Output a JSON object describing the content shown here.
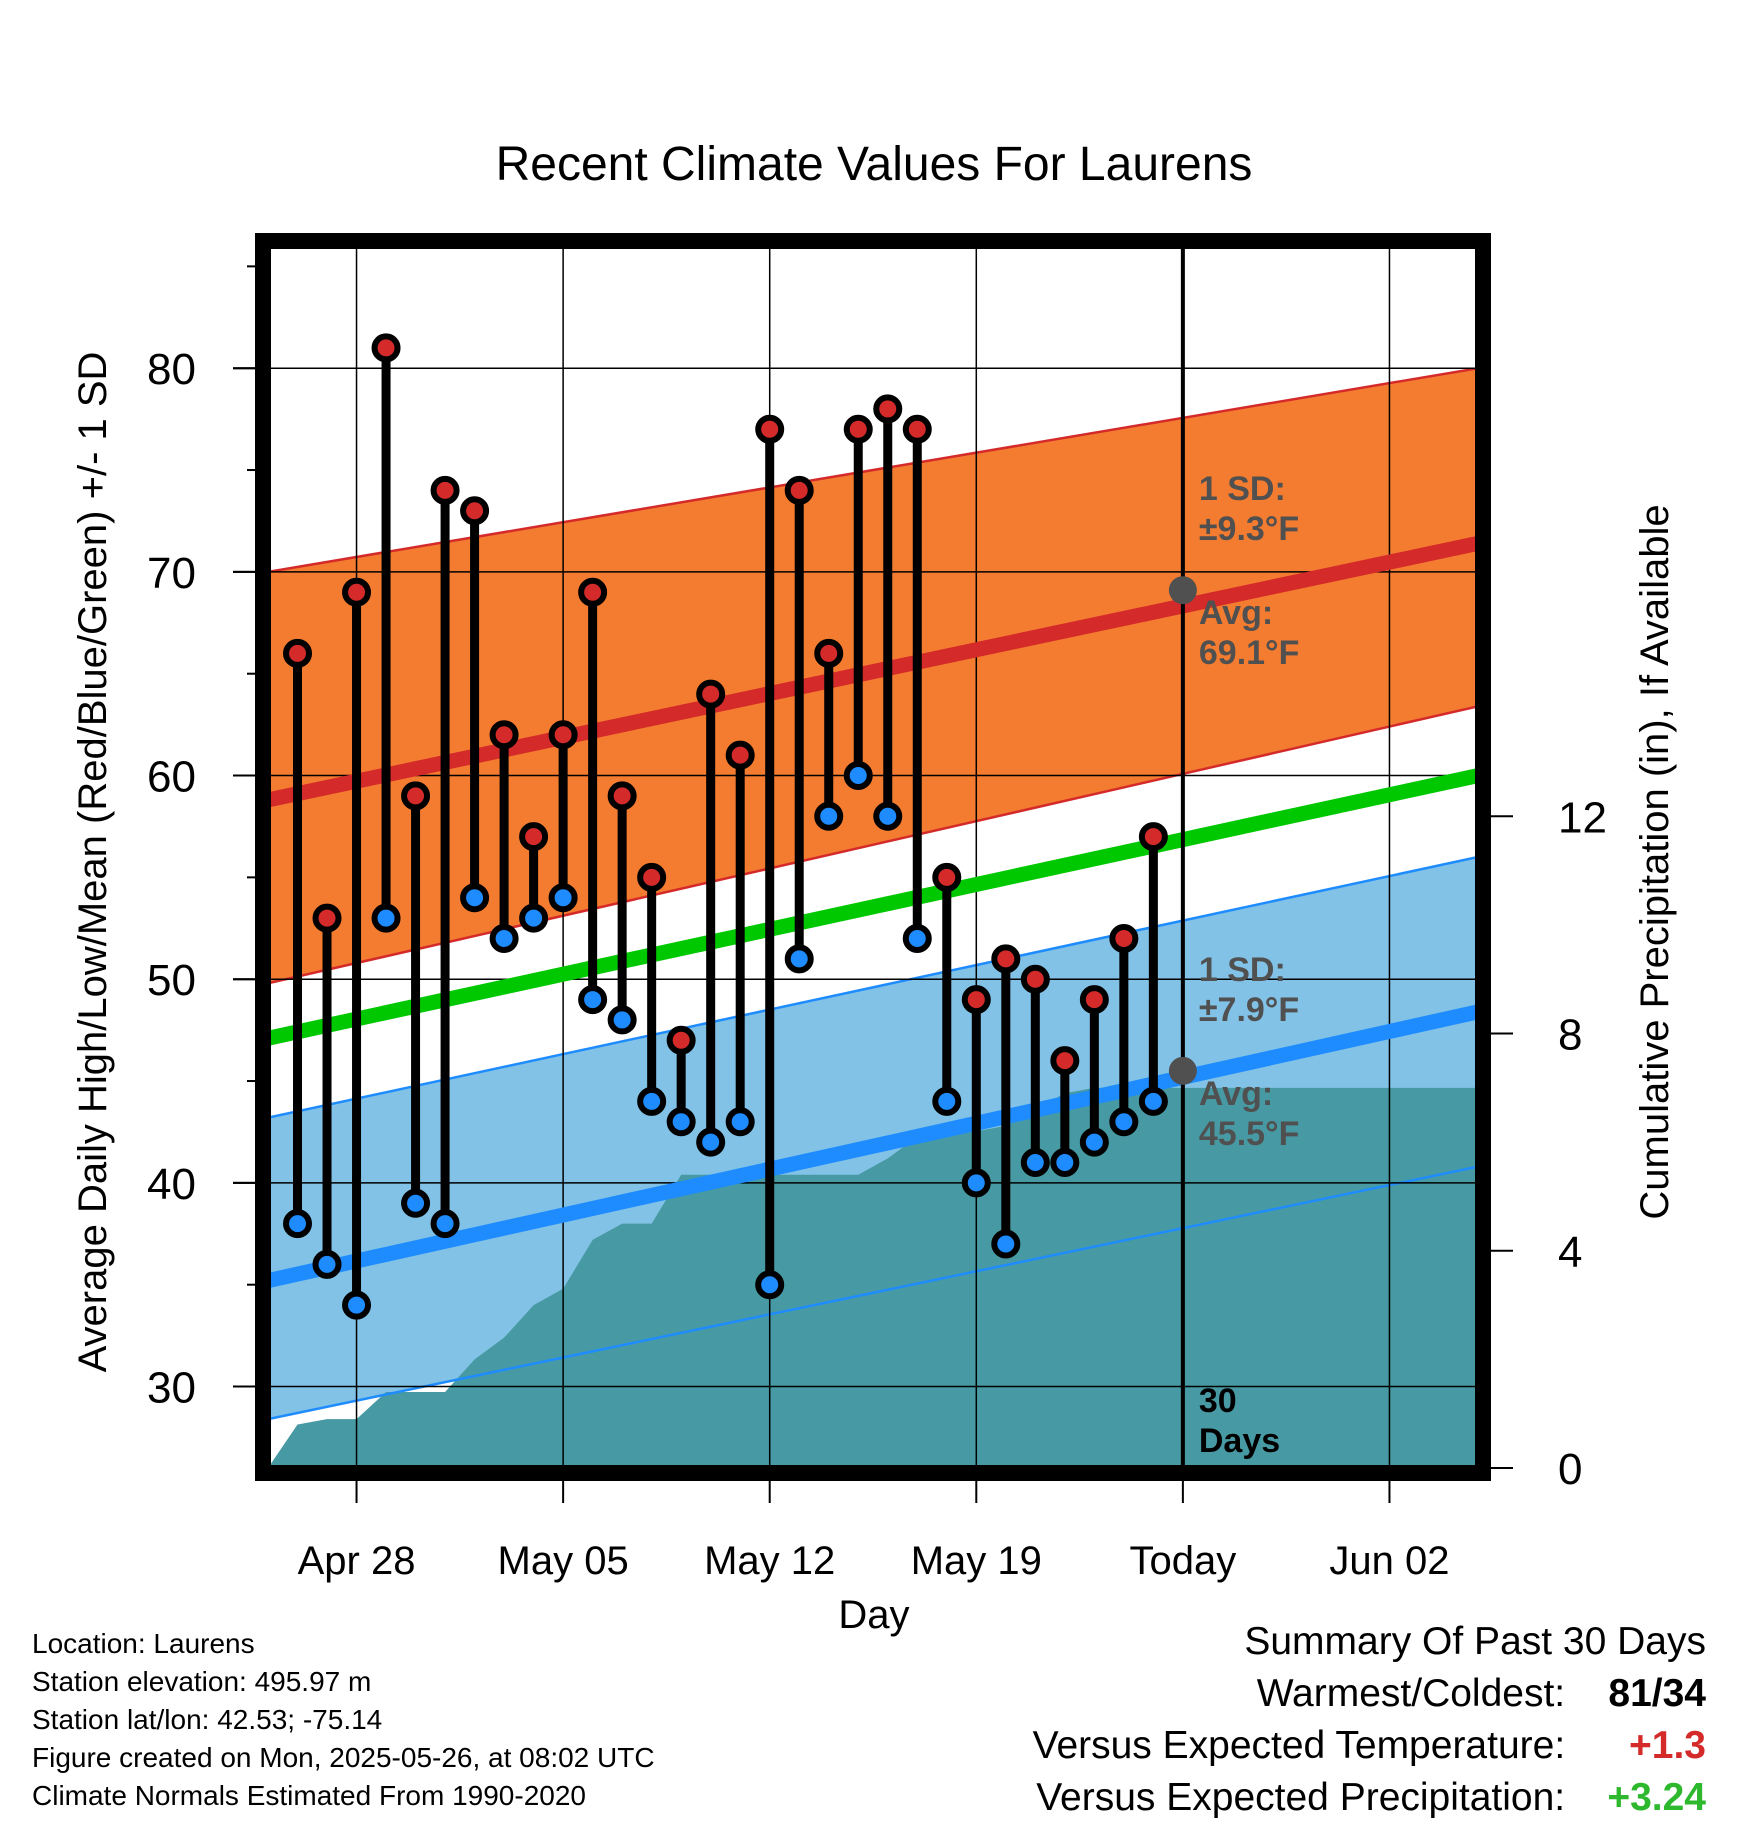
{
  "chart_data": {
    "type": "line",
    "title": "Recent Climate Values For Laurens",
    "xlabel": "Day",
    "ylabel": "Average Daily High/Low/Mean (Red/Blue/Green) +/- 1 SD",
    "y2label": "Cumulative Precipitation (in), If Available",
    "ylim": [
      26,
      86
    ],
    "y2lim": [
      0,
      22.5
    ],
    "xlim": [
      "2025-04-25",
      "2025-06-05"
    ],
    "yticks": [
      30,
      40,
      50,
      60,
      70,
      80
    ],
    "y2ticks": [
      0,
      4,
      8,
      12
    ],
    "xticks": [
      {
        "date": "2025-04-28",
        "label": "Apr 28"
      },
      {
        "date": "2025-05-05",
        "label": "May 05"
      },
      {
        "date": "2025-05-12",
        "label": "May 12"
      },
      {
        "date": "2025-05-19",
        "label": "May 19"
      },
      {
        "date": "2025-05-26",
        "label": "Today"
      },
      {
        "date": "2025-06-02",
        "label": "Jun 02"
      }
    ],
    "grid": true,
    "days": [
      "2025-04-26",
      "2025-04-27",
      "2025-04-28",
      "2025-04-29",
      "2025-04-30",
      "2025-05-01",
      "2025-05-02",
      "2025-05-03",
      "2025-05-04",
      "2025-05-05",
      "2025-05-06",
      "2025-05-07",
      "2025-05-08",
      "2025-05-09",
      "2025-05-10",
      "2025-05-11",
      "2025-05-12",
      "2025-05-13",
      "2025-05-14",
      "2025-05-15",
      "2025-05-16",
      "2025-05-17",
      "2025-05-18",
      "2025-05-19",
      "2025-05-20",
      "2025-05-21",
      "2025-05-22",
      "2025-05-23",
      "2025-05-24",
      "2025-05-25"
    ],
    "series": [
      {
        "name": "Daily High",
        "values": [
          66,
          53,
          69,
          81,
          59,
          74,
          73,
          62,
          57,
          62,
          69,
          59,
          55,
          47,
          64,
          61,
          77,
          74,
          66,
          77,
          78,
          77,
          55,
          49,
          51,
          50,
          46,
          49,
          52,
          57
        ]
      },
      {
        "name": "Daily Low",
        "values": [
          38,
          36,
          34,
          53,
          39,
          38,
          54,
          52,
          53,
          54,
          49,
          48,
          44,
          43,
          42,
          43,
          35,
          51,
          58,
          60,
          58,
          52,
          44,
          40,
          37,
          41,
          41,
          42,
          43,
          44
        ]
      }
    ],
    "normals": {
      "dates": [
        "2025-04-25",
        "2025-06-05"
      ],
      "high_avg": [
        58.8,
        71.4
      ],
      "high_sd_upper": [
        70.0,
        80.0
      ],
      "high_sd_lower": [
        49.8,
        63.4
      ],
      "mean_avg": [
        47.1,
        60.0
      ],
      "low_avg": [
        35.2,
        48.4
      ],
      "low_sd_upper": [
        43.2,
        56.0
      ],
      "low_sd_lower": [
        28.4,
        40.8
      ]
    },
    "cumulative_precipitation": {
      "dates": [
        "2025-04-25",
        "2025-04-26",
        "2025-04-27",
        "2025-04-28",
        "2025-04-29",
        "2025-04-30",
        "2025-05-01",
        "2025-05-02",
        "2025-05-03",
        "2025-05-04",
        "2025-05-05",
        "2025-05-06",
        "2025-05-07",
        "2025-05-08",
        "2025-05-09",
        "2025-05-10",
        "2025-05-11",
        "2025-05-12",
        "2025-05-13",
        "2025-05-14",
        "2025-05-15",
        "2025-05-16",
        "2025-05-17",
        "2025-05-18",
        "2025-05-19",
        "2025-05-20",
        "2025-05-21",
        "2025-05-22",
        "2025-05-23",
        "2025-05-24",
        "2025-05-25",
        "2025-05-26",
        "2025-06-05"
      ],
      "values": [
        0,
        0.8,
        0.9,
        0.9,
        1.4,
        1.4,
        1.4,
        2.0,
        2.4,
        3.0,
        3.3,
        4.2,
        4.5,
        4.5,
        5.4,
        5.4,
        5.4,
        5.4,
        5.4,
        5.4,
        5.4,
        5.7,
        6.1,
        6.2,
        6.2,
        6.3,
        6.6,
        6.9,
        7.0,
        7.0,
        7.0,
        7.0,
        7.0
      ]
    },
    "today_date": "2025-05-26",
    "annotations": {
      "high_sd": "1 SD:",
      "high_sd_value": "±9.3°F",
      "high_avg_label": "Avg:",
      "high_avg_value": "69.1°F",
      "high_avg_today": 69.1,
      "low_sd": "1 SD:",
      "low_sd_value": "±7.9°F",
      "low_avg_label": "Avg:",
      "low_avg_value": "45.5°F",
      "low_avg_today": 45.5,
      "period_line1": "30",
      "period_line2": "Days"
    },
    "colors": {
      "high": "#d42a2a",
      "high_band": "#f47c30",
      "mean": "#00c800",
      "low": "#1e8cff",
      "low_band": "#82c2e6",
      "precip": "#479aa3",
      "annotation": "#505050"
    }
  },
  "info": {
    "location": "Location: Laurens",
    "elevation": "Station elevation: 495.97 m",
    "latlon": "Station lat/lon: 42.53; -75.14",
    "created": "Figure created on Mon, 2025-05-26, at 08:02 UTC",
    "normals": "Climate Normals Estimated From 1990-2020"
  },
  "summary": {
    "title": "Summary Of Past 30 Days",
    "warm_cold_label": "Warmest/Coldest:",
    "warm_value": "81",
    "slash": "/",
    "cold_value": "34",
    "temp_label": "Versus Expected Temperature:",
    "temp_value": "+1.3",
    "temp_color": "#d42a2a",
    "precip_label": "Versus Expected Precipitation:",
    "precip_value": "+3.24",
    "precip_color": "#2db82d"
  }
}
